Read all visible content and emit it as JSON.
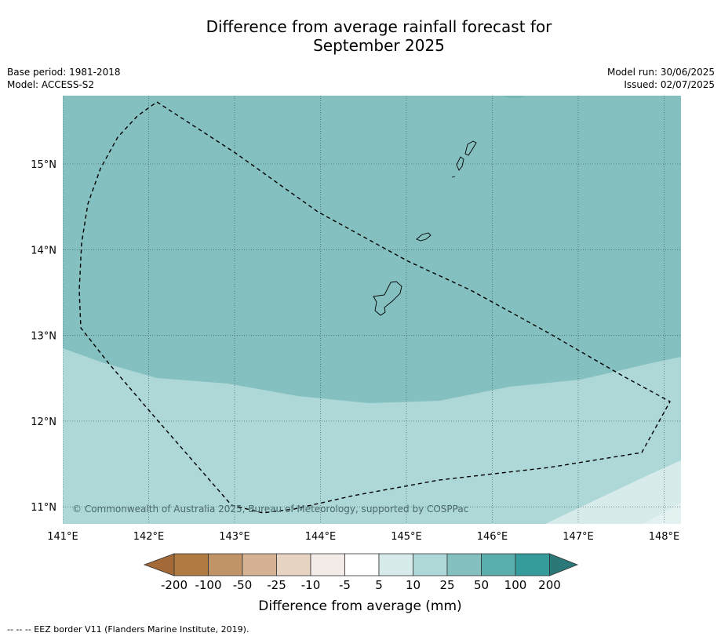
{
  "title": [
    "Difference from average rainfall forecast for",
    "September 2025"
  ],
  "meta": {
    "base_period": "Base period: 1981-2018",
    "model": "Model: ACCESS-S2",
    "model_run": "Model run: 30/06/2025",
    "issued": "Issued: 02/07/2025"
  },
  "map": {
    "lon_range": [
      141,
      148.2
    ],
    "lat_range": [
      10.8,
      15.8
    ],
    "lon_ticks": [
      141,
      142,
      143,
      144,
      145,
      146,
      147,
      148
    ],
    "lon_labels": [
      "141°E",
      "142°E",
      "143°E",
      "144°E",
      "145°E",
      "146°E",
      "147°E",
      "148°E"
    ],
    "lat_ticks": [
      15,
      14,
      13,
      12,
      11
    ],
    "lat_labels": [
      "15°N",
      "14°N",
      "13°N",
      "12°N",
      "11°N"
    ],
    "copyright": "© Commonwealth of Australia 2025, Bureau of Meteorology, supported by COSPPac",
    "region_colors": {
      "25-50": "#85c0c0",
      "10-25": "#aed7d7",
      "5-10": "#d7ebeb"
    }
  },
  "colorbar": {
    "colors": [
      "#a36a37",
      "#b07a43",
      "#c09467",
      "#d5b293",
      "#e7d3c2",
      "#f2ebe7",
      "#ffffff",
      "#d7ebeb",
      "#aed7d7",
      "#85c0c0",
      "#5aaeae",
      "#369b9b",
      "#2a7878"
    ],
    "labels": [
      "-200",
      "-100",
      "-50",
      "-25",
      "-10",
      "-5",
      "5",
      "10",
      "25",
      "50",
      "100",
      "200"
    ],
    "title": "Difference from average (mm)"
  },
  "footer": "--  --  -- EEZ border V11 (Flanders Marine Institute, 2019)."
}
